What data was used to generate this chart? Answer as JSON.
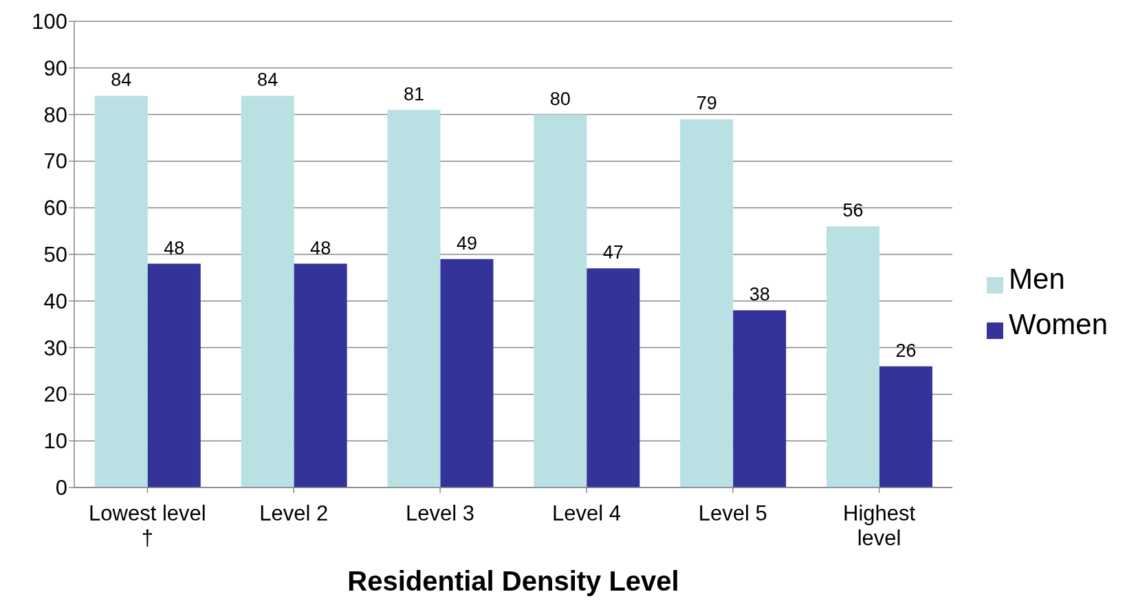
{
  "chart_data": {
    "type": "bar",
    "xlabel": "Residential Density Level",
    "categories": [
      "Lowest level †",
      "Level 2",
      "Level 3",
      "Level 4",
      "Level 5",
      "Highest level"
    ],
    "series": [
      {
        "name": "Men",
        "color": "#b9e0e3",
        "values": [
          84,
          84,
          81,
          80,
          79,
          56
        ]
      },
      {
        "name": "Women",
        "color": "#333399",
        "values": [
          48,
          48,
          49,
          47,
          38,
          26
        ]
      }
    ],
    "ylim": [
      0,
      100
    ],
    "yticks": [
      0,
      10,
      20,
      30,
      40,
      50,
      60,
      70,
      80,
      90,
      100
    ],
    "grid": "y",
    "legend": "right",
    "data_labels": true
  }
}
